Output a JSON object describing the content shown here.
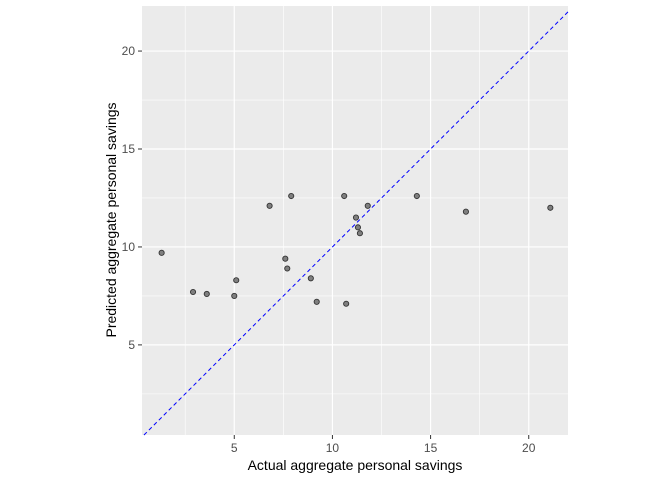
{
  "chart_data": {
    "type": "scatter",
    "title": "",
    "xlabel": "Actual aggregate personal savings",
    "ylabel": "Predicted aggregate personal savings",
    "xlim": [
      0.3,
      22.0
    ],
    "ylim": [
      0.4,
      22.3
    ],
    "x_ticks": [
      5,
      10,
      15,
      20
    ],
    "y_ticks": [
      5,
      10,
      15,
      20
    ],
    "x_tick_labels": [
      "5",
      "10",
      "15",
      "20"
    ],
    "y_tick_labels": [
      "5",
      "10",
      "15",
      "20"
    ],
    "grid": true,
    "reference_line": {
      "type": "y=x",
      "style": "dashed",
      "color": "#0000ff"
    },
    "colors": {
      "panel_background": "#ebebeb",
      "grid": "#ffffff",
      "point_fill": "#7f7f7f",
      "point_stroke": "#333333"
    },
    "points": [
      {
        "x": 1.3,
        "y": 9.7
      },
      {
        "x": 2.9,
        "y": 7.7
      },
      {
        "x": 3.6,
        "y": 7.6
      },
      {
        "x": 5.0,
        "y": 7.5
      },
      {
        "x": 5.1,
        "y": 8.3
      },
      {
        "x": 6.8,
        "y": 12.1
      },
      {
        "x": 7.6,
        "y": 9.4
      },
      {
        "x": 7.7,
        "y": 8.9
      },
      {
        "x": 7.9,
        "y": 12.6
      },
      {
        "x": 8.9,
        "y": 8.4
      },
      {
        "x": 9.2,
        "y": 7.2
      },
      {
        "x": 10.6,
        "y": 12.6
      },
      {
        "x": 10.7,
        "y": 7.1
      },
      {
        "x": 11.2,
        "y": 11.5
      },
      {
        "x": 11.3,
        "y": 11.0
      },
      {
        "x": 11.4,
        "y": 10.7
      },
      {
        "x": 11.8,
        "y": 12.1
      },
      {
        "x": 14.3,
        "y": 12.6
      },
      {
        "x": 16.8,
        "y": 11.8
      },
      {
        "x": 21.1,
        "y": 12.0
      }
    ]
  }
}
